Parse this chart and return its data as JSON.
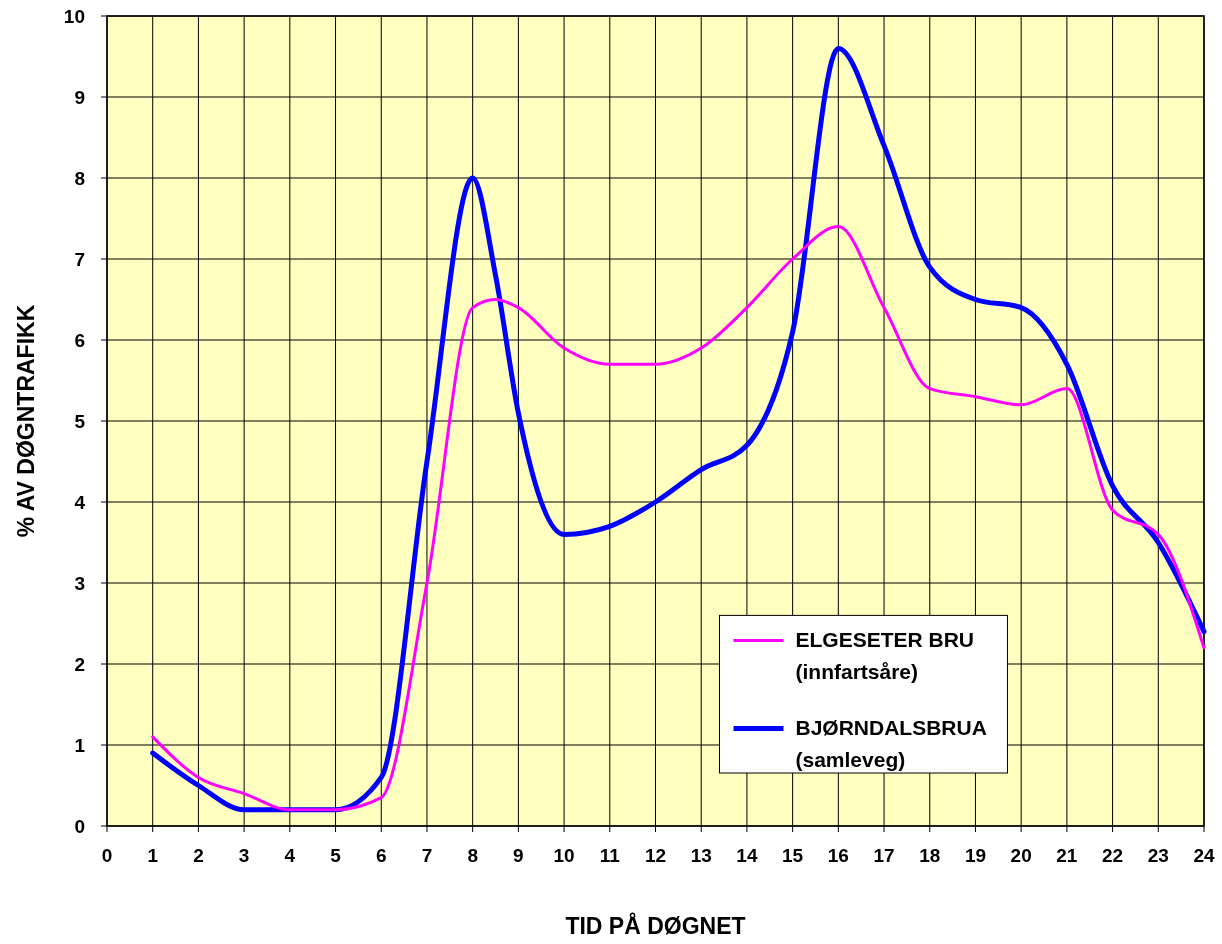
{
  "chart_data": {
    "type": "line",
    "xlabel": "TID PÅ DØGNET",
    "ylabel": "% AV DØGNTRAFIKK",
    "x": [
      1,
      2,
      3,
      4,
      5,
      6,
      7,
      8,
      8.5,
      9,
      10,
      11,
      12,
      13,
      14,
      15,
      16,
      17,
      18,
      19,
      20,
      21,
      22,
      23,
      24
    ],
    "series": [
      {
        "name": "ELGESETER BRU\n(innfartsåre)",
        "color": "#ff00ff",
        "values": [
          1.1,
          0.6,
          0.4,
          0.2,
          0.2,
          0.35,
          3.0,
          6.4,
          6.5,
          6.4,
          5.9,
          5.7,
          5.7,
          5.9,
          6.4,
          7.0,
          7.4,
          6.4,
          5.4,
          5.3,
          5.2,
          5.4,
          3.9,
          3.6,
          2.2
        ]
      },
      {
        "name": "BJØRNDALSBRUA\n(samleveg)",
        "color": "#0000ff",
        "values": [
          0.9,
          0.5,
          0.2,
          0.2,
          0.2,
          0.6,
          4.5,
          8.0,
          6.8,
          5.1,
          3.6,
          3.7,
          4.0,
          4.4,
          4.7,
          6.1,
          9.6,
          8.4,
          6.9,
          6.5,
          6.4,
          5.7,
          4.2,
          3.5,
          2.4
        ]
      }
    ],
    "xlim": [
      0,
      24
    ],
    "xticks": [
      0,
      1,
      2,
      3,
      4,
      5,
      6,
      7,
      8,
      9,
      10,
      11,
      12,
      13,
      14,
      15,
      16,
      17,
      18,
      19,
      20,
      21,
      22,
      23,
      24
    ],
    "ylim": [
      0,
      10
    ],
    "yticks": [
      0,
      1,
      2,
      3,
      4,
      5,
      6,
      7,
      8,
      9,
      10
    ],
    "grid": true,
    "legend": "bottom right",
    "marker": "none",
    "line_style": "solid"
  }
}
